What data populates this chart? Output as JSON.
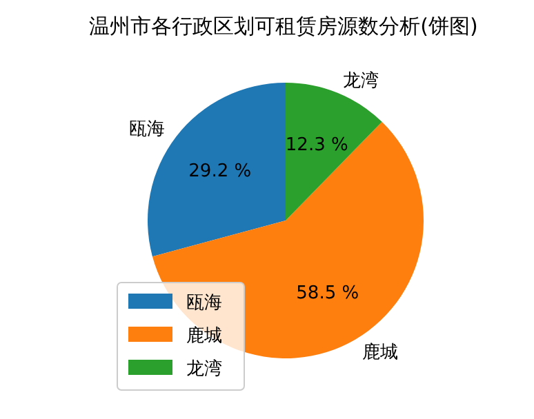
{
  "chart_data": {
    "type": "pie",
    "title": "温州市各行政区划可租赁房源数分析(饼图)",
    "categories": [
      "瓯海",
      "鹿城",
      "龙湾"
    ],
    "values": [
      29.2,
      58.5,
      12.3
    ],
    "value_labels": [
      "29.2 %",
      "58.5 %",
      "12.3 %"
    ],
    "colors": [
      "#1f77b4",
      "#ff7f0e",
      "#2ca02c"
    ],
    "legend": "bottom left"
  }
}
